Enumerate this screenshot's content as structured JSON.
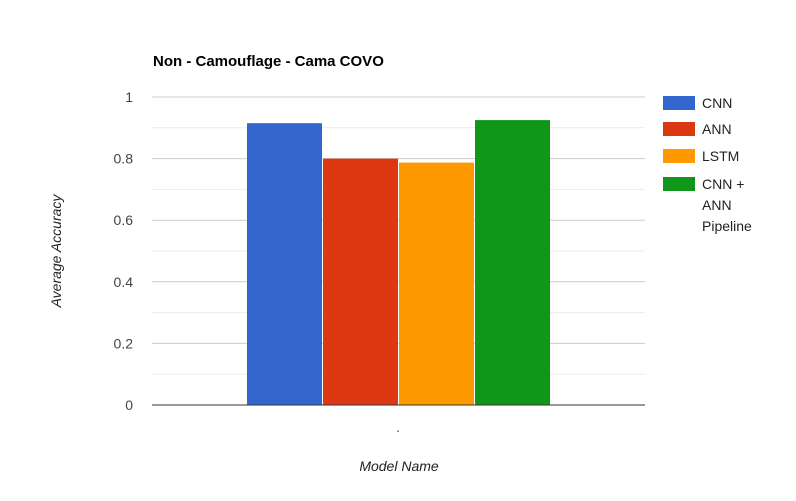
{
  "chart_data": {
    "type": "bar",
    "title": "Non - Camouflage - Cama COVO",
    "xlabel": "Model Name",
    "ylabel": "Average Accuracy",
    "categories": [
      "."
    ],
    "ylim": [
      0,
      1
    ],
    "yticks": [
      "0",
      "0.2",
      "0.4",
      "0.6",
      "0.8",
      "1"
    ],
    "grid": true,
    "legend_position": "right",
    "series": [
      {
        "name": "CNN",
        "values": [
          0.915
        ],
        "color": "#3366cc"
      },
      {
        "name": "ANN",
        "values": [
          0.8
        ],
        "color": "#dc3912"
      },
      {
        "name": "LSTM",
        "values": [
          0.787
        ],
        "color": "#ff9900"
      },
      {
        "name": "CNN + ANN Pipeline",
        "values": [
          0.925
        ],
        "color": "#109618"
      }
    ]
  }
}
